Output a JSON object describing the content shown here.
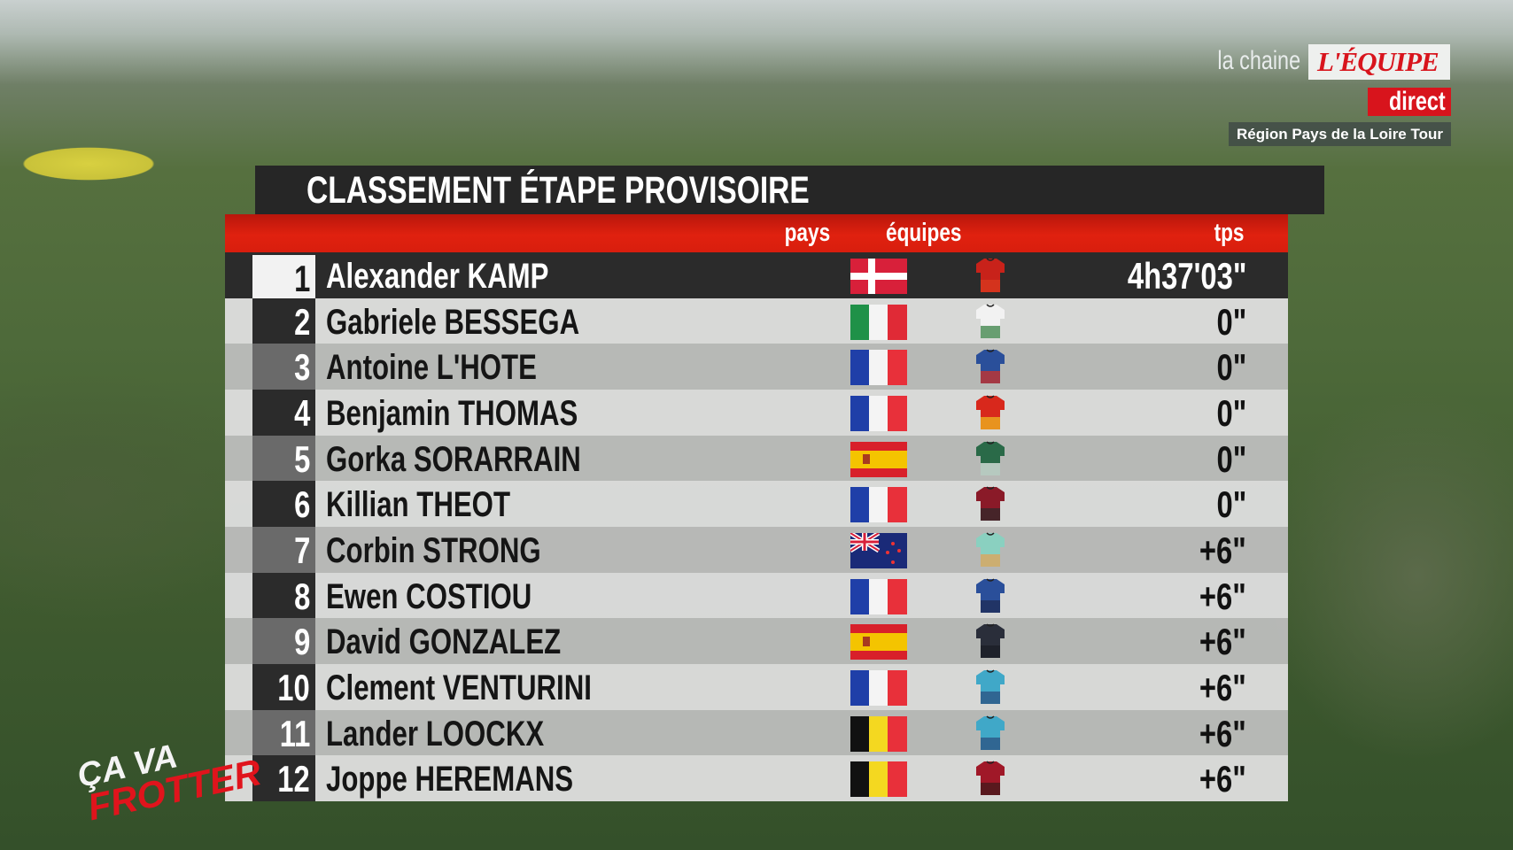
{
  "broadcaster": {
    "prefix": "la chaine",
    "logo": "L'ÉQUIPE",
    "live_badge": "direct",
    "race": "Région Pays de la Loire Tour"
  },
  "board": {
    "title": "CLASSEMENT ÉTAPE PROVISOIRE",
    "headers": {
      "country": "pays",
      "team": "équipes",
      "time": "tps"
    },
    "rows": [
      {
        "rank": "1",
        "name": "Alexander KAMP",
        "flag": "dk",
        "jersey": [
          "#c8221a",
          "#d83a20"
        ],
        "time": "4h37'03\""
      },
      {
        "rank": "2",
        "name": "Gabriele BESSEGA",
        "flag": "it",
        "jersey": [
          "#f2f2f2",
          "#2d7a3a"
        ],
        "time": "0\""
      },
      {
        "rank": "3",
        "name": "Antoine L'HOTE",
        "flag": "fr",
        "jersey": [
          "#2a4f9a",
          "#d83020"
        ],
        "time": "0\""
      },
      {
        "rank": "4",
        "name": "Benjamin THOMAS",
        "flag": "fr",
        "jersey": [
          "#d8281c",
          "#f0c020"
        ],
        "time": "0\""
      },
      {
        "rank": "5",
        "name": "Gorka SORARRAIN",
        "flag": "es",
        "jersey": [
          "#2a6a48",
          "#f2f2f2"
        ],
        "time": "0\""
      },
      {
        "rank": "6",
        "name": "Killian THEOT",
        "flag": "fr",
        "jersey": [
          "#8a1a28",
          "#2a2a2a"
        ],
        "time": "0\""
      },
      {
        "rank": "7",
        "name": "Corbin STRONG",
        "flag": "nz",
        "jersey": [
          "#8ad0c0",
          "#e8a050"
        ],
        "time": "+6\""
      },
      {
        "rank": "8",
        "name": "Ewen COSTIOU",
        "flag": "fr",
        "jersey": [
          "#2a4f9a",
          "#1e2a50"
        ],
        "time": "+6\""
      },
      {
        "rank": "9",
        "name": "David GONZALEZ",
        "flag": "es",
        "jersey": [
          "#2a2e3a",
          "#1a1c24"
        ],
        "time": "+6\""
      },
      {
        "rank": "10",
        "name": "Clement VENTURINI",
        "flag": "fr",
        "jersey": [
          "#40a8c8",
          "#2a4a7a"
        ],
        "time": "+6\""
      },
      {
        "rank": "11",
        "name": "Lander LOOCKX",
        "flag": "be",
        "jersey": [
          "#40a8c8",
          "#2a4a7a"
        ],
        "time": "+6\""
      },
      {
        "rank": "12",
        "name": "Joppe HEREMANS",
        "flag": "be",
        "jersey": [
          "#a01828",
          "#3a1a1a"
        ],
        "time": "+6\""
      }
    ]
  },
  "show_logo": {
    "line1": "ÇA VA",
    "line2": "FROTTER"
  }
}
